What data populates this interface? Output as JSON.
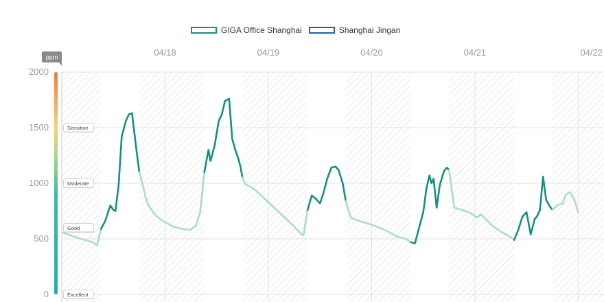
{
  "colors": {
    "series1": "#13907e",
    "series1_light": "#a8dcd2",
    "series2": "#1a5fb4",
    "grid": "#e2e2e2",
    "tick": "#9a9a9a",
    "hatch": "#d6d6d6"
  },
  "chart_data": {
    "type": "line",
    "unit": "ppm",
    "x_ticks": [
      "04/18",
      "04/19",
      "04/20",
      "04/21",
      "04/22"
    ],
    "y_ticks": [
      "0",
      "500",
      "1000",
      "1500",
      "2000"
    ],
    "ylim": [
      0,
      2000
    ],
    "xlim": [
      0,
      5.25
    ],
    "grid": true,
    "legend_position": "top-center",
    "scale_bands": [
      {
        "label": "Excellent",
        "value": 0
      },
      {
        "label": "Good",
        "value": 600
      },
      {
        "label": "Moderate",
        "value": 1000
      },
      {
        "label": "Sensitive",
        "value": 1500
      }
    ],
    "gap_bands": [
      [
        0.38,
        0.75
      ],
      [
        1.38,
        1.75
      ],
      [
        2.38,
        2.75
      ],
      [
        3.38,
        3.75
      ],
      [
        4.38,
        4.75
      ]
    ],
    "series": [
      {
        "name": "GIGA Office Shanghai",
        "x": [
          0,
          0.15,
          0.3,
          0.34,
          0.38,
          0.42,
          0.47,
          0.5,
          0.52,
          0.55,
          0.58,
          0.62,
          0.65,
          0.68,
          0.71,
          0.73,
          0.75,
          0.78,
          0.81,
          0.84,
          0.87,
          0.9,
          0.95,
          1.0,
          1.08,
          1.16,
          1.24,
          1.3,
          1.34,
          1.38,
          1.42,
          1.44,
          1.48,
          1.52,
          1.55,
          1.58,
          1.62,
          1.65,
          1.68,
          1.71,
          1.73,
          1.75,
          1.78,
          1.82,
          1.86,
          1.92,
          2.0,
          2.08,
          2.16,
          2.24,
          2.3,
          2.34,
          2.38,
          2.42,
          2.46,
          2.5,
          2.53,
          2.57,
          2.61,
          2.65,
          2.68,
          2.72,
          2.75,
          2.8,
          2.88,
          2.96,
          3.05,
          3.15,
          3.25,
          3.33,
          3.38,
          3.42,
          3.46,
          3.5,
          3.53,
          3.56,
          3.58,
          3.6,
          3.63,
          3.66,
          3.7,
          3.73,
          3.75,
          3.8,
          3.88,
          3.96,
          4.02,
          4.06,
          4.1,
          4.18,
          4.26,
          4.34,
          4.38,
          4.42,
          4.46,
          4.5,
          4.54,
          4.58,
          4.6,
          4.63,
          4.66,
          4.69,
          4.72,
          4.75,
          4.8,
          4.85,
          4.88,
          4.92,
          4.96,
          5.0
        ],
        "values": [
          560,
          510,
          470,
          440,
          590,
          660,
          800,
          760,
          750,
          980,
          1420,
          1560,
          1620,
          1630,
          1400,
          1250,
          1100,
          1000,
          880,
          800,
          760,
          720,
          680,
          650,
          610,
          590,
          580,
          620,
          740,
          1100,
          1300,
          1200,
          1340,
          1560,
          1620,
          1740,
          1760,
          1400,
          1300,
          1220,
          1150,
          1050,
          990,
          970,
          950,
          900,
          830,
          760,
          690,
          620,
          560,
          530,
          760,
          890,
          860,
          820,
          900,
          1040,
          1140,
          1150,
          1120,
          1000,
          840,
          690,
          660,
          640,
          610,
          570,
          520,
          500,
          470,
          460,
          600,
          740,
          950,
          1070,
          1000,
          1040,
          780,
          980,
          1110,
          1140,
          1120,
          780,
          760,
          730,
          690,
          720,
          680,
          610,
          560,
          520,
          490,
          580,
          700,
          740,
          540,
          680,
          700,
          760,
          1060,
          850,
          800,
          760,
          800,
          820,
          900,
          920,
          860,
          740
        ]
      },
      {
        "name": "Shanghai Jingan",
        "x": [],
        "values": []
      }
    ]
  }
}
